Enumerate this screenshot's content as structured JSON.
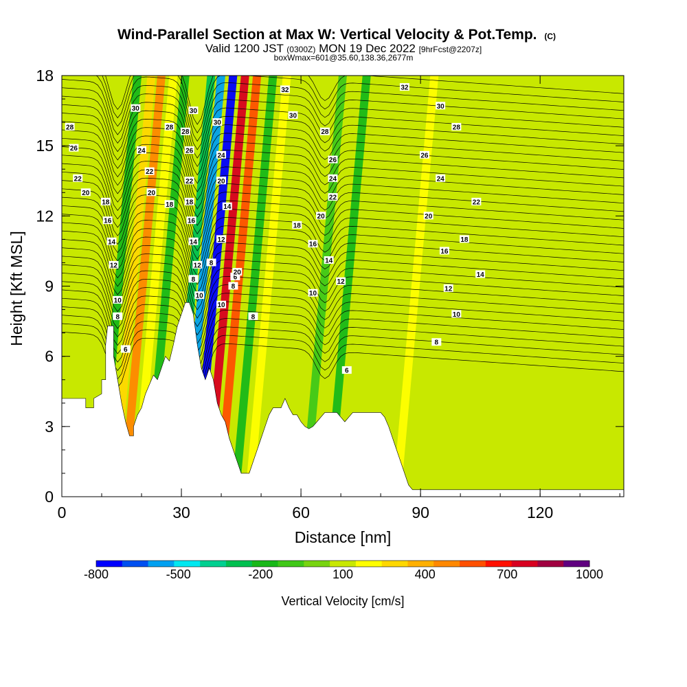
{
  "chart_data": {
    "type": "heatmap",
    "title": "Wind-Parallel Section at Max W: Vertical Velocity & Pot.Temp.",
    "title_mark": "(C)",
    "subtitle_pre": "Valid 1200 JST",
    "subtitle_z": "(0300Z)",
    "subtitle_mid": "MON 19 Dec 2022",
    "subtitle_fcst": "[9hrFcst@2207z]",
    "subtitle2": "boxWmax=601@35.60,138.36,2677m",
    "xlabel": "Distance [nm]",
    "ylabel": "Height [Kft MSL]",
    "xlim": [
      0,
      141
    ],
    "ylim": [
      0,
      18
    ],
    "x_ticks": [
      0,
      30,
      60,
      90,
      120
    ],
    "y_ticks": [
      0,
      3,
      6,
      9,
      12,
      15,
      18
    ],
    "colorbar": {
      "label": "Vertical Velocity [cm/s]",
      "tick_labels": [
        "-800",
        "-500",
        "-200",
        "100",
        "400",
        "700",
        "1000"
      ],
      "tick_values": [
        -800,
        -500,
        -200,
        100,
        400,
        700,
        1000
      ],
      "colors": [
        "#0000ff",
        "#0050f0",
        "#00a0f0",
        "#00e8f0",
        "#00d090",
        "#00c050",
        "#18b818",
        "#40c818",
        "#78d410",
        "#c8e800",
        "#ffff00",
        "#ffd800",
        "#ffb000",
        "#ff8800",
        "#ff5000",
        "#ff1000",
        "#d80020",
        "#a00040",
        "#600080"
      ]
    },
    "terrain_profile": [
      [
        0,
        4.2
      ],
      [
        6,
        4.2
      ],
      [
        6,
        3.8
      ],
      [
        8,
        3.8
      ],
      [
        8,
        4.2
      ],
      [
        10,
        4.4
      ],
      [
        10,
        5.0
      ],
      [
        11,
        5.0
      ],
      [
        11,
        6.5
      ],
      [
        11.5,
        7.3
      ],
      [
        13,
        7.3
      ],
      [
        13,
        6.0
      ],
      [
        14,
        5.0
      ],
      [
        15,
        4.0
      ],
      [
        16,
        3.2
      ],
      [
        17,
        2.6
      ],
      [
        18,
        2.6
      ],
      [
        18,
        3.0
      ],
      [
        19,
        3.5
      ],
      [
        20,
        3.8
      ],
      [
        21,
        4.4
      ],
      [
        22,
        4.8
      ],
      [
        23,
        5.2
      ],
      [
        24,
        5.0
      ],
      [
        25,
        5.5
      ],
      [
        26,
        6.0
      ],
      [
        27,
        5.8
      ],
      [
        28,
        6.5
      ],
      [
        29,
        7.3
      ],
      [
        30,
        7.8
      ],
      [
        31,
        8.3
      ],
      [
        32,
        8.3
      ],
      [
        33,
        7.8
      ],
      [
        34,
        6.5
      ],
      [
        35,
        5.5
      ],
      [
        36,
        5.0
      ],
      [
        37,
        5.5
      ],
      [
        38,
        5.0
      ],
      [
        39,
        4.0
      ],
      [
        40,
        3.5
      ],
      [
        41,
        3.2
      ],
      [
        42,
        2.5
      ],
      [
        43,
        2.0
      ],
      [
        44,
        1.5
      ],
      [
        45,
        1.0
      ],
      [
        47,
        1.0
      ],
      [
        48,
        1.5
      ],
      [
        49,
        2.0
      ],
      [
        50,
        2.5
      ],
      [
        51,
        3.0
      ],
      [
        52,
        3.5
      ],
      [
        53,
        3.8
      ],
      [
        55,
        3.8
      ],
      [
        56,
        4.2
      ],
      [
        57,
        3.8
      ],
      [
        58,
        3.5
      ],
      [
        59,
        3.5
      ],
      [
        60,
        3.2
      ],
      [
        61,
        3.0
      ],
      [
        62,
        2.9
      ],
      [
        63,
        3.0
      ],
      [
        64,
        3.2
      ],
      [
        65,
        3.4
      ],
      [
        66,
        3.6
      ],
      [
        69,
        3.6
      ],
      [
        70,
        3.4
      ],
      [
        71,
        3.2
      ],
      [
        72,
        3.4
      ],
      [
        73,
        3.6
      ],
      [
        80,
        3.6
      ],
      [
        81,
        3.4
      ],
      [
        82,
        3.0
      ],
      [
        83,
        2.5
      ],
      [
        84,
        2.0
      ],
      [
        85,
        1.5
      ],
      [
        86,
        1.0
      ],
      [
        87,
        0.5
      ],
      [
        88,
        0.3
      ],
      [
        141,
        0.3
      ]
    ],
    "bands": [
      {
        "x": 13,
        "value": 200,
        "color": "#ffd800"
      },
      {
        "x": 15.5,
        "value": 400,
        "color": "#ff8800"
      },
      {
        "x": 18.5,
        "value": 100,
        "color": "#ffff00"
      },
      {
        "x": 9.5,
        "value": -200,
        "color": "#18b818"
      },
      {
        "x": 21.5,
        "value": -200,
        "color": "#18b818"
      },
      {
        "x": 28,
        "value": -300,
        "color": "#00c050"
      },
      {
        "x": 30.5,
        "value": -500,
        "color": "#00a0f0"
      },
      {
        "x": 33.5,
        "value": -800,
        "color": "#0000ff"
      },
      {
        "x": 36.5,
        "value": 1000,
        "color": "#d80020"
      },
      {
        "x": 39.5,
        "value": 400,
        "color": "#ff5000"
      },
      {
        "x": 43.5,
        "value": -200,
        "color": "#18b818"
      },
      {
        "x": 47,
        "value": 100,
        "color": "#ffff00"
      },
      {
        "x": 61,
        "value": -100,
        "color": "#40c818"
      },
      {
        "x": 67,
        "value": -200,
        "color": "#18b818"
      },
      {
        "x": 84,
        "value": 100,
        "color": "#ffff00"
      }
    ],
    "contour_labels": [
      {
        "text": "32",
        "x": 56,
        "y": 17.4
      },
      {
        "text": "32",
        "x": 86,
        "y": 17.5
      },
      {
        "text": "30",
        "x": 18.5,
        "y": 16.6
      },
      {
        "text": "30",
        "x": 33,
        "y": 16.5
      },
      {
        "text": "30",
        "x": 39,
        "y": 16.0
      },
      {
        "text": "30",
        "x": 58,
        "y": 16.3
      },
      {
        "text": "30",
        "x": 95,
        "y": 16.7
      },
      {
        "text": "28",
        "x": 2,
        "y": 15.8
      },
      {
        "text": "28",
        "x": 27,
        "y": 15.8
      },
      {
        "text": "28",
        "x": 31,
        "y": 15.6
      },
      {
        "text": "28",
        "x": 66,
        "y": 15.6
      },
      {
        "text": "28",
        "x": 99,
        "y": 15.8
      },
      {
        "text": "26",
        "x": 3,
        "y": 14.9
      },
      {
        "text": "26",
        "x": 32,
        "y": 14.8
      },
      {
        "text": "26",
        "x": 68,
        "y": 14.4
      },
      {
        "text": "26",
        "x": 91,
        "y": 14.6
      },
      {
        "text": "24",
        "x": 20,
        "y": 14.8
      },
      {
        "text": "24",
        "x": 40,
        "y": 14.6
      },
      {
        "text": "24",
        "x": 68,
        "y": 13.6
      },
      {
        "text": "24",
        "x": 95,
        "y": 13.6
      },
      {
        "text": "22",
        "x": 4,
        "y": 13.6
      },
      {
        "text": "22",
        "x": 22,
        "y": 13.9
      },
      {
        "text": "22",
        "x": 32,
        "y": 13.5
      },
      {
        "text": "22",
        "x": 68,
        "y": 12.8
      },
      {
        "text": "22",
        "x": 104,
        "y": 12.6
      },
      {
        "text": "20",
        "x": 6,
        "y": 13.0
      },
      {
        "text": "20",
        "x": 22.5,
        "y": 13.0
      },
      {
        "text": "20",
        "x": 40,
        "y": 13.5
      },
      {
        "text": "20",
        "x": 65,
        "y": 12.0
      },
      {
        "text": "20",
        "x": 92,
        "y": 12.0
      },
      {
        "text": "18",
        "x": 11,
        "y": 12.6
      },
      {
        "text": "18",
        "x": 27,
        "y": 12.5
      },
      {
        "text": "18",
        "x": 32,
        "y": 12.6
      },
      {
        "text": "18",
        "x": 59,
        "y": 11.6
      },
      {
        "text": "18",
        "x": 101,
        "y": 11.0
      },
      {
        "text": "16",
        "x": 11.5,
        "y": 11.8
      },
      {
        "text": "16",
        "x": 32.5,
        "y": 11.8
      },
      {
        "text": "16",
        "x": 63,
        "y": 10.8
      },
      {
        "text": "16",
        "x": 96,
        "y": 10.5
      },
      {
        "text": "14",
        "x": 12.5,
        "y": 10.9
      },
      {
        "text": "14",
        "x": 33,
        "y": 10.9
      },
      {
        "text": "14",
        "x": 41.5,
        "y": 12.4
      },
      {
        "text": "14",
        "x": 67,
        "y": 10.1
      },
      {
        "text": "14",
        "x": 105,
        "y": 9.5
      },
      {
        "text": "12",
        "x": 13,
        "y": 9.9
      },
      {
        "text": "12",
        "x": 34,
        "y": 9.9
      },
      {
        "text": "12",
        "x": 40,
        "y": 11.0
      },
      {
        "text": "12",
        "x": 70,
        "y": 9.2
      },
      {
        "text": "12",
        "x": 97,
        "y": 8.9
      },
      {
        "text": "10",
        "x": 14,
        "y": 8.4
      },
      {
        "text": "10",
        "x": 34.5,
        "y": 8.6
      },
      {
        "text": "10",
        "x": 63,
        "y": 8.7
      },
      {
        "text": "10",
        "x": 99,
        "y": 7.8
      },
      {
        "text": "8",
        "x": 14,
        "y": 7.7
      },
      {
        "text": "8",
        "x": 33,
        "y": 9.3
      },
      {
        "text": "8",
        "x": 37.5,
        "y": 10.0
      },
      {
        "text": "8",
        "x": 43,
        "y": 9.0
      },
      {
        "text": "8",
        "x": 48,
        "y": 7.7
      },
      {
        "text": "8",
        "x": 94,
        "y": 6.6
      },
      {
        "text": "6",
        "x": 16,
        "y": 6.3
      },
      {
        "text": "6",
        "x": 43.5,
        "y": 9.4
      },
      {
        "text": "6",
        "x": 71.5,
        "y": 5.4
      },
      {
        "text": "10",
        "x": 40,
        "y": 8.2
      },
      {
        "text": "20",
        "x": 44,
        "y": 9.6
      }
    ]
  }
}
